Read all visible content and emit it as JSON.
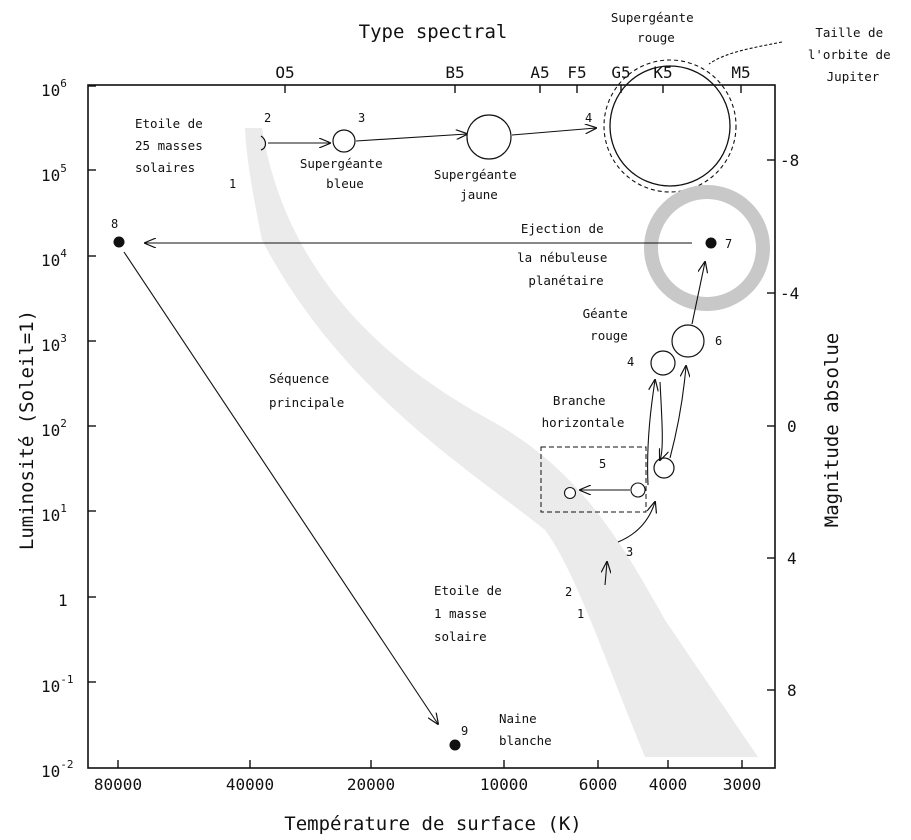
{
  "titles": {
    "top": "Type spectral",
    "bottom": "Température de surface (K)",
    "left": "Luminosité (Soleil=1)",
    "right": "Magnitude absolue"
  },
  "spectral_types": [
    "O5",
    "B5",
    "A5",
    "F5",
    "G5",
    "K5",
    "M5"
  ],
  "temperature_ticks": [
    "80000",
    "40000",
    "20000",
    "10000",
    "6000",
    "4000",
    "3000"
  ],
  "luminosity_ticks": {
    "l6": {
      "base": "10",
      "exp": "6"
    },
    "l5": {
      "base": "10",
      "exp": "5"
    },
    "l4": {
      "base": "10",
      "exp": "4"
    },
    "l3": {
      "base": "10",
      "exp": "3"
    },
    "l2": {
      "base": "10",
      "exp": "2"
    },
    "l1": {
      "base": "10",
      "exp": "1"
    },
    "l0": {
      "base": "1",
      "exp": ""
    },
    "lm1": {
      "base": "10",
      "exp": "-1"
    },
    "lm2": {
      "base": "10",
      "exp": "-2"
    }
  },
  "magnitude_ticks": [
    "-8",
    "-4",
    "0",
    "4",
    "8"
  ],
  "labels": {
    "massive_star": [
      "Etoile de",
      "25 masses",
      "solaires"
    ],
    "blue_supergiant": [
      "Supergéante",
      "bleue"
    ],
    "yellow_supergiant": [
      "Supergéante",
      "jaune"
    ],
    "red_supergiant": [
      "Supergéante",
      "rouge"
    ],
    "jupiter_orbit": [
      "Taille de",
      "l'orbite de",
      "Jupiter"
    ],
    "nebula_ejection": [
      "Ejection de",
      "la nébuleuse",
      "planétaire"
    ],
    "red_giant": [
      "Géante",
      "rouge"
    ],
    "horizontal_branch": [
      "Branche",
      "horizontale"
    ],
    "main_sequence": [
      "Séquence",
      "principale"
    ],
    "solar_star": [
      "Etoile de",
      "1 masse",
      "solaire"
    ],
    "white_dwarf": [
      "Naine",
      "blanche"
    ]
  },
  "step_numbers": {
    "massive_1": "1",
    "massive_2": "2",
    "massive_3": "3",
    "massive_4": "4",
    "solar_1": "1",
    "solar_2": "2",
    "solar_3": "3",
    "solar_4": "4",
    "solar_5": "5",
    "solar_6": "6",
    "solar_7": "7",
    "solar_8": "8",
    "solar_9": "9"
  },
  "colors": {
    "ink": "#111111",
    "main_sequence_band": "#ebebeb",
    "nebula_ring": "#c8c8c8"
  }
}
